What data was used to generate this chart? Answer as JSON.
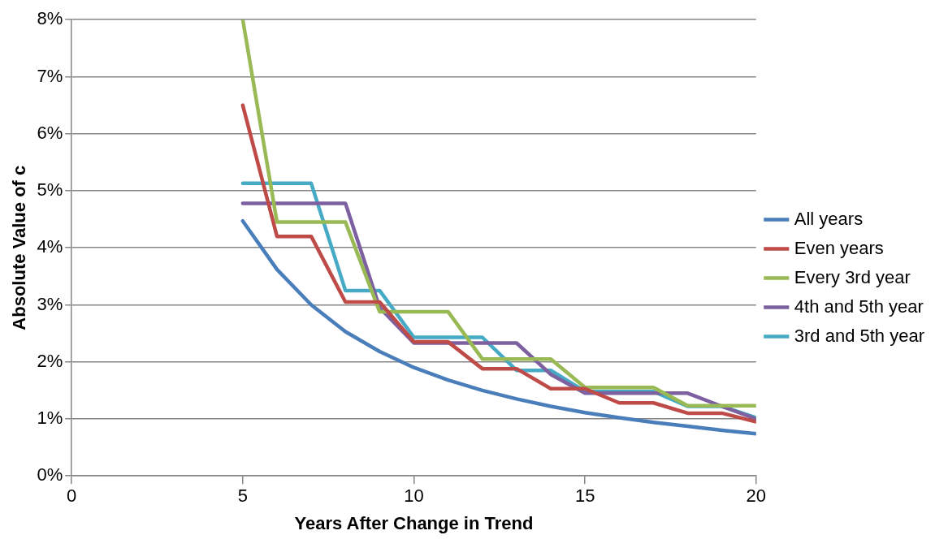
{
  "chart_data": {
    "type": "line",
    "xlabel": "Years After Change in Trend",
    "ylabel": "Absolute Value of c",
    "x": [
      5,
      6,
      7,
      8,
      9,
      10,
      11,
      12,
      13,
      14,
      15,
      16,
      17,
      18,
      19,
      20
    ],
    "series": [
      {
        "name": "All years",
        "color": "#4a7ebb",
        "values": [
          4.47,
          3.62,
          3.0,
          2.53,
          2.18,
          1.9,
          1.68,
          1.5,
          1.35,
          1.22,
          1.11,
          1.02,
          0.94,
          0.87,
          0.8,
          0.74
        ]
      },
      {
        "name": "Even years",
        "color": "#be4b48",
        "values": [
          6.5,
          4.2,
          4.2,
          3.05,
          3.05,
          2.35,
          2.35,
          1.88,
          1.88,
          1.53,
          1.53,
          1.28,
          1.28,
          1.1,
          1.1,
          0.95
        ]
      },
      {
        "name": "Every 3rd year",
        "color": "#98b954",
        "values": [
          8.0,
          4.45,
          4.45,
          4.45,
          2.88,
          2.88,
          2.88,
          2.05,
          2.05,
          2.05,
          1.55,
          1.55,
          1.55,
          1.23,
          1.23,
          1.23
        ]
      },
      {
        "name": "4th and 5th year",
        "color": "#7d60a0",
        "values": [
          4.78,
          4.78,
          4.78,
          4.78,
          2.95,
          2.33,
          2.33,
          2.33,
          2.33,
          1.78,
          1.45,
          1.45,
          1.45,
          1.45,
          1.22,
          1.0
        ]
      },
      {
        "name": "3rd and 5th year",
        "color": "#46aac5",
        "values": [
          5.13,
          5.13,
          5.13,
          3.25,
          3.25,
          2.43,
          2.43,
          2.43,
          1.85,
          1.85,
          1.48,
          1.48,
          1.48,
          1.22,
          1.22,
          1.02
        ]
      }
    ],
    "xlim": [
      0,
      20
    ],
    "xticks": [
      0,
      5,
      10,
      15,
      20
    ],
    "ylim": [
      0,
      8
    ],
    "yticks": [
      {
        "value": 0,
        "label": "0%"
      },
      {
        "value": 1,
        "label": "1%"
      },
      {
        "value": 2,
        "label": "2%"
      },
      {
        "value": 3,
        "label": "3%"
      },
      {
        "value": 4,
        "label": "4%"
      },
      {
        "value": 5,
        "label": "5%"
      },
      {
        "value": 6,
        "label": "6%"
      },
      {
        "value": 7,
        "label": "7%"
      },
      {
        "value": 8,
        "label": "8%"
      }
    ],
    "grid": "y",
    "legend": "right",
    "marker": "none",
    "line_style": "solid"
  }
}
